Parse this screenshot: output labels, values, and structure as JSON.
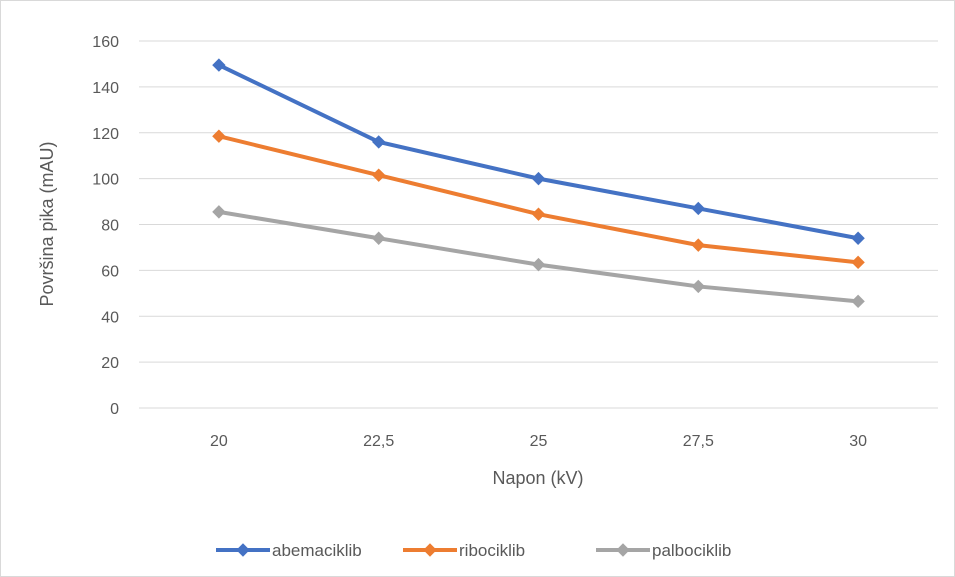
{
  "chart_data": {
    "type": "line",
    "title": "",
    "xlabel": "Napon (kV)",
    "ylabel": "Površina pika (mAU)",
    "categories": [
      "20",
      "22,5",
      "25",
      "27,5",
      "30"
    ],
    "ylim": [
      0,
      160
    ],
    "yticks": [
      0,
      20,
      40,
      60,
      80,
      100,
      120,
      140,
      160
    ],
    "grid": true,
    "legend_position": "bottom",
    "series": [
      {
        "name": "abemaciklib",
        "color": "#4472c4",
        "values": [
          149.5,
          116,
          100,
          87,
          74
        ]
      },
      {
        "name": "ribociklib",
        "color": "#ed7d31",
        "values": [
          118.5,
          101.5,
          84.5,
          71,
          63.5
        ]
      },
      {
        "name": "palbociklib",
        "color": "#a5a5a5",
        "values": [
          85.5,
          74,
          62.5,
          53,
          46.5
        ]
      }
    ]
  }
}
